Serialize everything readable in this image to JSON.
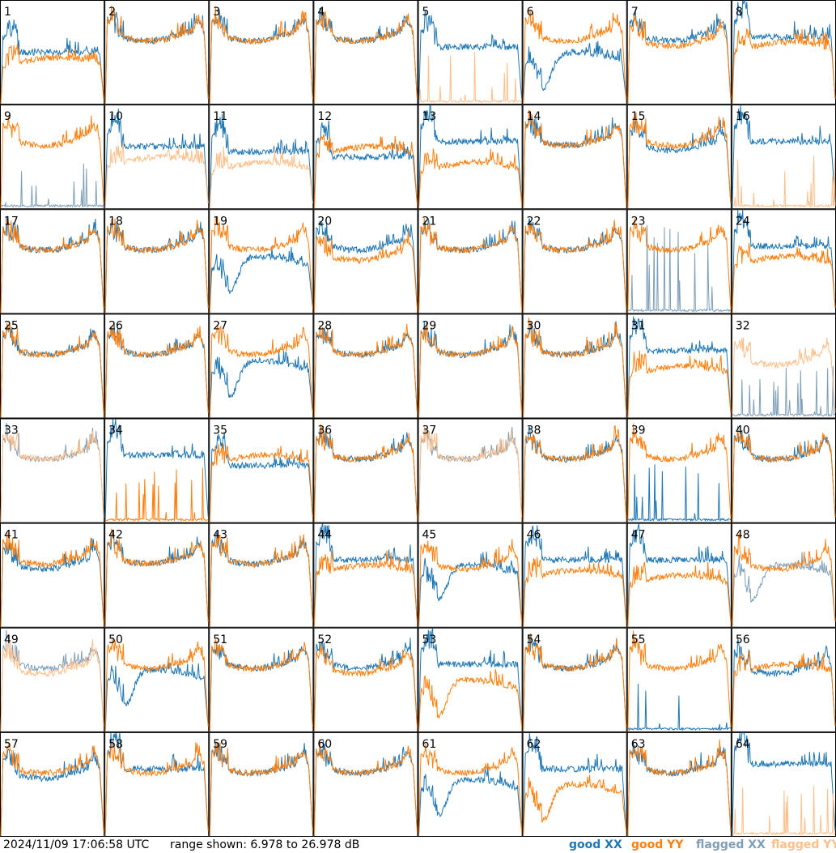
{
  "timestamp": "2024/11/09 17:06:58 UTC",
  "range_text": "range shown: 6.978 to 26.978 dB",
  "legend": {
    "good_xx": "good XX",
    "good_yy": "good YY",
    "flagged_xx": "flagged XX",
    "flagged_yy": "flagged YY"
  },
  "colors": {
    "good_xx": "#1f77b4",
    "good_yy": "#ff7f0e",
    "flagged_xx": "#7f9fb8",
    "flagged_yy": "#ffbf8a"
  },
  "chart_data": {
    "type": "line",
    "grid_rows": 8,
    "grid_cols": 8,
    "ylim": [
      6.978,
      26.978
    ],
    "ylabel_unit": "dB",
    "panels": [
      {
        "label": "1",
        "xx": {
          "flagged": false,
          "shape": "C",
          "level": 17
        },
        "yy": {
          "flagged": false,
          "shape": "A",
          "level": 16
        }
      },
      {
        "label": "2",
        "xx": {
          "flagged": false,
          "shape": "N",
          "level": 21
        },
        "yy": {
          "flagged": false,
          "shape": "N",
          "level": 21
        }
      },
      {
        "label": "3",
        "xx": {
          "flagged": false,
          "shape": "N",
          "level": 21
        },
        "yy": {
          "flagged": false,
          "shape": "N",
          "level": 21
        }
      },
      {
        "label": "4",
        "xx": {
          "flagged": false,
          "shape": "N",
          "level": 21
        },
        "yy": {
          "flagged": false,
          "shape": "N",
          "level": 21
        }
      },
      {
        "label": "5",
        "xx": {
          "flagged": false,
          "shape": "C",
          "level": 18
        },
        "yy": {
          "flagged": true,
          "shape": "Z",
          "level": 7
        }
      },
      {
        "label": "6",
        "xx": {
          "flagged": false,
          "shape": "S",
          "level": 15
        },
        "yy": {
          "flagged": false,
          "shape": "N",
          "level": 21
        }
      },
      {
        "label": "7",
        "xx": {
          "flagged": false,
          "shape": "N",
          "level": 21
        },
        "yy": {
          "flagged": false,
          "shape": "N",
          "level": 20
        }
      },
      {
        "label": "8",
        "xx": {
          "flagged": false,
          "shape": "C",
          "level": 20
        },
        "yy": {
          "flagged": false,
          "shape": "A",
          "level": 19
        }
      },
      {
        "label": "9",
        "xx": {
          "flagged": true,
          "shape": "Z",
          "level": 7
        },
        "yy": {
          "flagged": false,
          "shape": "N",
          "level": 21
        }
      },
      {
        "label": "10",
        "xx": {
          "flagged": false,
          "shape": "C",
          "level": 19
        },
        "yy": {
          "flagged": true,
          "shape": "A",
          "level": 17
        }
      },
      {
        "label": "11",
        "xx": {
          "flagged": false,
          "shape": "C",
          "level": 18
        },
        "yy": {
          "flagged": true,
          "shape": "A",
          "level": 16
        }
      },
      {
        "label": "12",
        "xx": {
          "flagged": false,
          "shape": "C",
          "level": 17
        },
        "yy": {
          "flagged": false,
          "shape": "A",
          "level": 19
        }
      },
      {
        "label": "13",
        "xx": {
          "flagged": false,
          "shape": "C",
          "level": 20
        },
        "yy": {
          "flagged": false,
          "shape": "A",
          "level": 16
        }
      },
      {
        "label": "14",
        "xx": {
          "flagged": false,
          "shape": "N",
          "level": 21
        },
        "yy": {
          "flagged": false,
          "shape": "N",
          "level": 21
        }
      },
      {
        "label": "15",
        "xx": {
          "flagged": false,
          "shape": "N",
          "level": 20
        },
        "yy": {
          "flagged": false,
          "shape": "N",
          "level": 21
        }
      },
      {
        "label": "16",
        "xx": {
          "flagged": false,
          "shape": "C",
          "level": 20
        },
        "yy": {
          "flagged": true,
          "shape": "Z",
          "level": 7
        }
      },
      {
        "label": "17",
        "xx": {
          "flagged": false,
          "shape": "N",
          "level": 21
        },
        "yy": {
          "flagged": false,
          "shape": "N",
          "level": 21
        }
      },
      {
        "label": "18",
        "xx": {
          "flagged": false,
          "shape": "N",
          "level": 21
        },
        "yy": {
          "flagged": false,
          "shape": "N",
          "level": 21
        }
      },
      {
        "label": "19",
        "xx": {
          "flagged": false,
          "shape": "S",
          "level": 16
        },
        "yy": {
          "flagged": false,
          "shape": "N",
          "level": 21
        }
      },
      {
        "label": "20",
        "xx": {
          "flagged": false,
          "shape": "N",
          "level": 21
        },
        "yy": {
          "flagged": false,
          "shape": "N",
          "level": 19
        }
      },
      {
        "label": "21",
        "xx": {
          "flagged": false,
          "shape": "N",
          "level": 21
        },
        "yy": {
          "flagged": false,
          "shape": "N",
          "level": 21
        }
      },
      {
        "label": "22",
        "xx": {
          "flagged": false,
          "shape": "N",
          "level": 21
        },
        "yy": {
          "flagged": false,
          "shape": "N",
          "level": 21
        }
      },
      {
        "label": "23",
        "xx": {
          "flagged": true,
          "shape": "Z",
          "level": 14
        },
        "yy": {
          "flagged": false,
          "shape": "N",
          "level": 21
        }
      },
      {
        "label": "24",
        "xx": {
          "flagged": false,
          "shape": "C",
          "level": 20
        },
        "yy": {
          "flagged": false,
          "shape": "A",
          "level": 18
        }
      },
      {
        "label": "25",
        "xx": {
          "flagged": false,
          "shape": "N",
          "level": 21
        },
        "yy": {
          "flagged": false,
          "shape": "N",
          "level": 21
        }
      },
      {
        "label": "26",
        "xx": {
          "flagged": false,
          "shape": "N",
          "level": 21
        },
        "yy": {
          "flagged": false,
          "shape": "N",
          "level": 21
        }
      },
      {
        "label": "27",
        "xx": {
          "flagged": false,
          "shape": "S",
          "level": 16
        },
        "yy": {
          "flagged": false,
          "shape": "N",
          "level": 21
        }
      },
      {
        "label": "28",
        "xx": {
          "flagged": false,
          "shape": "N",
          "level": 21
        },
        "yy": {
          "flagged": false,
          "shape": "N",
          "level": 21
        }
      },
      {
        "label": "29",
        "xx": {
          "flagged": false,
          "shape": "N",
          "level": 21
        },
        "yy": {
          "flagged": false,
          "shape": "N",
          "level": 21
        }
      },
      {
        "label": "30",
        "xx": {
          "flagged": false,
          "shape": "N",
          "level": 21
        },
        "yy": {
          "flagged": false,
          "shape": "N",
          "level": 21
        }
      },
      {
        "label": "31",
        "xx": {
          "flagged": false,
          "shape": "C",
          "level": 20
        },
        "yy": {
          "flagged": false,
          "shape": "A",
          "level": 17
        }
      },
      {
        "label": "32",
        "xx": {
          "flagged": true,
          "shape": "Z",
          "level": 7
        },
        "yy": {
          "flagged": true,
          "shape": "N",
          "level": 19
        }
      },
      {
        "label": "33",
        "xx": {
          "flagged": true,
          "shape": "N",
          "level": 21
        },
        "yy": {
          "flagged": true,
          "shape": "N",
          "level": 21
        }
      },
      {
        "label": "34",
        "xx": {
          "flagged": false,
          "shape": "C",
          "level": 20
        },
        "yy": {
          "flagged": false,
          "shape": "Z",
          "level": 8
        }
      },
      {
        "label": "35",
        "xx": {
          "flagged": false,
          "shape": "C",
          "level": 18
        },
        "yy": {
          "flagged": false,
          "shape": "A",
          "level": 20
        }
      },
      {
        "label": "36",
        "xx": {
          "flagged": false,
          "shape": "N",
          "level": 21
        },
        "yy": {
          "flagged": false,
          "shape": "N",
          "level": 21
        }
      },
      {
        "label": "37",
        "xx": {
          "flagged": true,
          "shape": "N",
          "level": 21
        },
        "yy": {
          "flagged": true,
          "shape": "N",
          "level": 21
        }
      },
      {
        "label": "38",
        "xx": {
          "flagged": false,
          "shape": "N",
          "level": 21
        },
        "yy": {
          "flagged": false,
          "shape": "N",
          "level": 21
        }
      },
      {
        "label": "39",
        "xx": {
          "flagged": false,
          "shape": "Z",
          "level": 8
        },
        "yy": {
          "flagged": false,
          "shape": "N",
          "level": 21
        }
      },
      {
        "label": "40",
        "xx": {
          "flagged": false,
          "shape": "N",
          "level": 21
        },
        "yy": {
          "flagged": false,
          "shape": "N",
          "level": 21
        }
      },
      {
        "label": "41",
        "xx": {
          "flagged": false,
          "shape": "N",
          "level": 20
        },
        "yy": {
          "flagged": false,
          "shape": "N",
          "level": 21
        }
      },
      {
        "label": "42",
        "xx": {
          "flagged": false,
          "shape": "N",
          "level": 21
        },
        "yy": {
          "flagged": false,
          "shape": "N",
          "level": 21
        }
      },
      {
        "label": "43",
        "xx": {
          "flagged": false,
          "shape": "N",
          "level": 21
        },
        "yy": {
          "flagged": false,
          "shape": "N",
          "level": 21
        }
      },
      {
        "label": "44",
        "xx": {
          "flagged": false,
          "shape": "C",
          "level": 20
        },
        "yy": {
          "flagged": false,
          "shape": "A",
          "level": 19
        }
      },
      {
        "label": "45",
        "xx": {
          "flagged": false,
          "shape": "S",
          "level": 17
        },
        "yy": {
          "flagged": false,
          "shape": "N",
          "level": 20
        }
      },
      {
        "label": "46",
        "xx": {
          "flagged": false,
          "shape": "C",
          "level": 20
        },
        "yy": {
          "flagged": false,
          "shape": "A",
          "level": 18
        }
      },
      {
        "label": "47",
        "xx": {
          "flagged": false,
          "shape": "C",
          "level": 20
        },
        "yy": {
          "flagged": false,
          "shape": "A",
          "level": 17
        }
      },
      {
        "label": "48",
        "xx": {
          "flagged": true,
          "shape": "S",
          "level": 17
        },
        "yy": {
          "flagged": false,
          "shape": "N",
          "level": 20
        }
      },
      {
        "label": "49",
        "xx": {
          "flagged": true,
          "shape": "N",
          "level": 21
        },
        "yy": {
          "flagged": true,
          "shape": "N",
          "level": 20
        }
      },
      {
        "label": "50",
        "xx": {
          "flagged": false,
          "shape": "S",
          "level": 17
        },
        "yy": {
          "flagged": false,
          "shape": "N",
          "level": 21
        }
      },
      {
        "label": "51",
        "xx": {
          "flagged": false,
          "shape": "N",
          "level": 21
        },
        "yy": {
          "flagged": false,
          "shape": "N",
          "level": 21
        }
      },
      {
        "label": "52",
        "xx": {
          "flagged": false,
          "shape": "N",
          "level": 21
        },
        "yy": {
          "flagged": false,
          "shape": "N",
          "level": 20
        }
      },
      {
        "label": "53",
        "xx": {
          "flagged": false,
          "shape": "C",
          "level": 20
        },
        "yy": {
          "flagged": false,
          "shape": "S",
          "level": 15
        }
      },
      {
        "label": "54",
        "xx": {
          "flagged": false,
          "shape": "N",
          "level": 21
        },
        "yy": {
          "flagged": false,
          "shape": "N",
          "level": 21
        }
      },
      {
        "label": "55",
        "xx": {
          "flagged": false,
          "shape": "Z",
          "level": 8
        },
        "yy": {
          "flagged": false,
          "shape": "N",
          "level": 21
        }
      },
      {
        "label": "56",
        "xx": {
          "flagged": false,
          "shape": "N",
          "level": 20
        },
        "yy": {
          "flagged": false,
          "shape": "A",
          "level": 20
        }
      },
      {
        "label": "57",
        "xx": {
          "flagged": false,
          "shape": "N",
          "level": 20
        },
        "yy": {
          "flagged": false,
          "shape": "N",
          "level": 21
        }
      },
      {
        "label": "58",
        "xx": {
          "flagged": false,
          "shape": "C",
          "level": 20
        },
        "yy": {
          "flagged": false,
          "shape": "N",
          "level": 21
        }
      },
      {
        "label": "59",
        "xx": {
          "flagged": false,
          "shape": "N",
          "level": 21
        },
        "yy": {
          "flagged": false,
          "shape": "N",
          "level": 21
        }
      },
      {
        "label": "60",
        "xx": {
          "flagged": false,
          "shape": "N",
          "level": 21
        },
        "yy": {
          "flagged": false,
          "shape": "N",
          "level": 21
        }
      },
      {
        "label": "61",
        "xx": {
          "flagged": false,
          "shape": "S",
          "level": 16
        },
        "yy": {
          "flagged": false,
          "shape": "N",
          "level": 21
        }
      },
      {
        "label": "62",
        "xx": {
          "flagged": false,
          "shape": "C",
          "level": 20
        },
        "yy": {
          "flagged": false,
          "shape": "S",
          "level": 15
        }
      },
      {
        "label": "63",
        "xx": {
          "flagged": false,
          "shape": "N",
          "level": 21
        },
        "yy": {
          "flagged": false,
          "shape": "N",
          "level": 21
        }
      },
      {
        "label": "64",
        "xx": {
          "flagged": false,
          "shape": "C",
          "level": 21
        },
        "yy": {
          "flagged": true,
          "shape": "Z",
          "level": 7
        }
      }
    ]
  }
}
